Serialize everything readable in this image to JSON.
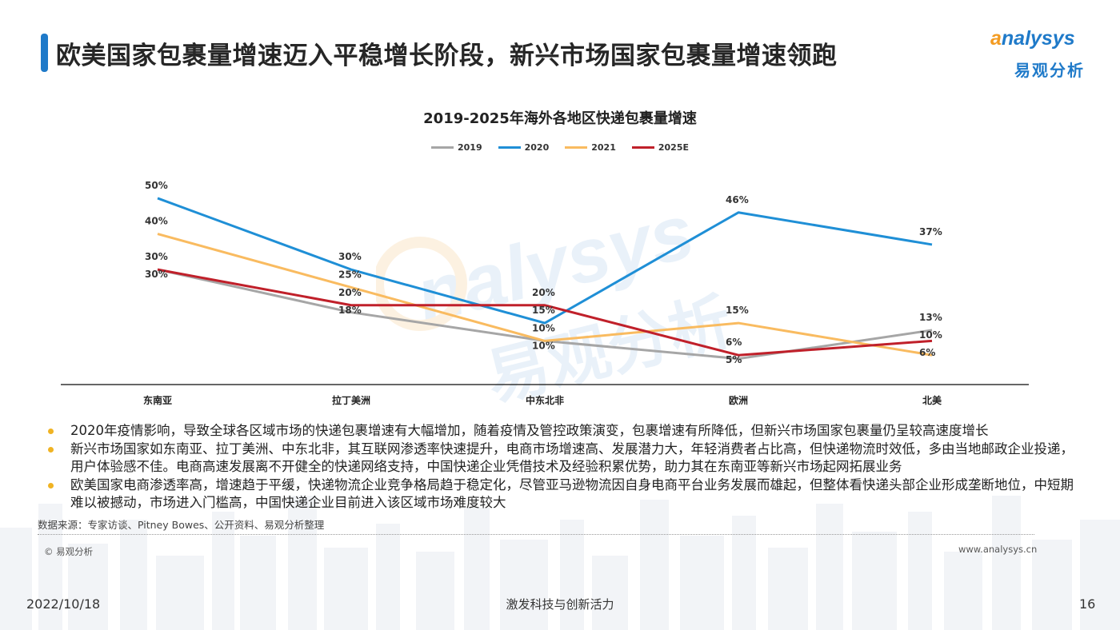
{
  "header": {
    "title": "欧美国家包裹量增速迈入平稳增长阶段，新兴市场国家包裹量增速领跑",
    "logo_text": "nalysys",
    "logo_cn": "易观分析",
    "accent": "#1f7ac9"
  },
  "chart_data": {
    "type": "line",
    "title": "2019-2025年海外各地区快递包裹量增速",
    "categories": [
      "东南亚",
      "拉丁美洲",
      "中东北非",
      "欧洲",
      "北美"
    ],
    "series": [
      {
        "name": "2019",
        "color": "#a6a6a6",
        "values": [
          30,
          18,
          10,
          5,
          13
        ],
        "labels": [
          "30%",
          "18%",
          "10%",
          "5%",
          "13%"
        ]
      },
      {
        "name": "2020",
        "color": "#1f8fd6",
        "values": [
          50,
          30,
          15,
          46,
          37
        ],
        "labels": [
          "50%",
          "30%",
          "15%",
          "46%",
          "37%"
        ]
      },
      {
        "name": "2021",
        "color": "#f9bb60",
        "values": [
          40,
          25,
          10,
          15,
          6
        ],
        "labels": [
          "40%",
          "25%",
          "10%",
          "15%",
          "6%"
        ]
      },
      {
        "name": "2025E",
        "color": "#c0202a",
        "values": [
          30,
          20,
          20,
          6,
          10
        ],
        "labels": [
          "30%",
          "20%",
          "20%",
          "6%",
          "10%"
        ]
      }
    ],
    "ylim": [
      0,
      52
    ],
    "grid": false,
    "legend_position": "top-center"
  },
  "bullets": [
    "2020年疫情影响，导致全球各区域市场的快递包裹增速有大幅增加，随着疫情及管控政策演变，包裹增速有所降低，但新兴市场国家包裹量仍呈较高速度增长",
    "新兴市场国家如东南亚、拉丁美洲、中东北非，其互联网渗透率快速提升，电商市场增速高、发展潜力大，年轻消费者占比高，但快递物流时效低，多由当地邮政企业投递，用户体验感不佳。电商高速发展离不开健全的快递网络支持，中国快递企业凭借技术及经验积累优势，助力其在东南亚等新兴市场起网拓展业务",
    "欧美国家电商渗透率高，增速趋于平缓，快递物流企业竞争格局趋于稳定化，尽管亚马逊物流因自身电商平台业务发展而雄起，但整体看快递头部企业形成垄断地位，中短期难以被撼动，市场进入门槛高，中国快递企业目前进入该区域市场难度较大"
  ],
  "source": "数据来源：专家访谈、Pitney Bowes、公开资料、易观分析整理",
  "copyright": "© 易观分析",
  "website": "www.analysys.cn",
  "footer": {
    "date": "2022/10/18",
    "slogan": "激发科技与创新活力",
    "page": "16"
  },
  "watermark": {
    "text": "nalysys",
    "cn": "易观分析"
  }
}
